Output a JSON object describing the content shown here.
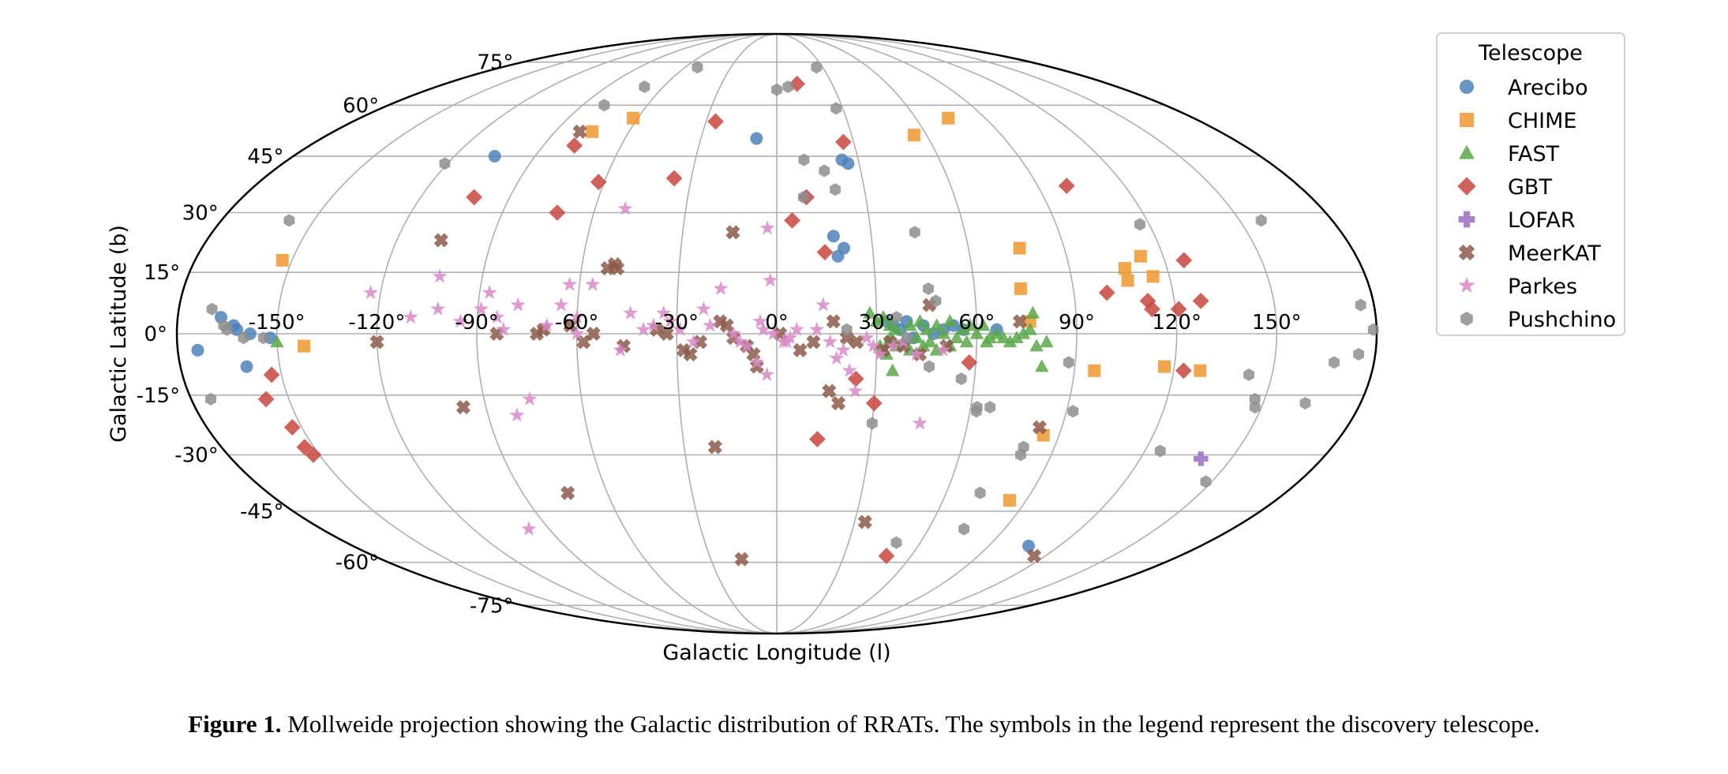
{
  "chart_data": {
    "type": "scatter",
    "projection": "mollweide",
    "xlabel": "Galactic Longitude (l)",
    "ylabel": "Galactic Latitude (b)",
    "xlim": [
      -180,
      180
    ],
    "ylim": [
      -90,
      90
    ],
    "grid": true,
    "x_ticks": [
      -150,
      -120,
      -90,
      -60,
      -30,
      0,
      30,
      60,
      90,
      120,
      150
    ],
    "x_tick_labels": [
      "-150°",
      "-120°",
      "-90°",
      "-60°",
      "-30°",
      "0°",
      "30°",
      "60°",
      "90°",
      "120°",
      "150°"
    ],
    "y_ticks": [
      -75,
      -60,
      -45,
      -30,
      -15,
      0,
      15,
      30,
      45,
      60,
      75
    ],
    "y_tick_labels": [
      "-75°",
      "-60°",
      "-45°",
      "-30°",
      "-15°",
      "0°",
      "15°",
      "30°",
      "45°",
      "60°",
      "75°"
    ],
    "legend": {
      "title": "Telescope",
      "position": "outside-right"
    },
    "series": [
      {
        "name": "Arecibo",
        "marker": "circle",
        "color": "#4e82b8",
        "points": [
          [
            -174,
            -4
          ],
          [
            -167,
            4
          ],
          [
            -163,
            2
          ],
          [
            -162,
            1
          ],
          [
            -158,
            0
          ],
          [
            -152,
            -1
          ],
          [
            -160,
            -8
          ],
          [
            -105,
            45
          ],
          [
            -8,
            50
          ],
          [
            18,
            24
          ],
          [
            21,
            21
          ],
          [
            19,
            19
          ],
          [
            24,
            44
          ],
          [
            26,
            43
          ],
          [
            33,
            3
          ],
          [
            35,
            2
          ],
          [
            37,
            1
          ],
          [
            39,
            3
          ],
          [
            41,
            -1
          ],
          [
            44,
            2
          ],
          [
            47,
            0
          ],
          [
            50,
            1
          ],
          [
            53,
            2
          ],
          [
            56,
            1
          ],
          [
            66,
            1
          ],
          [
            107,
            -55
          ]
        ]
      },
      {
        "name": "CHIME",
        "marker": "square",
        "color": "#f0962e",
        "points": [
          [
            -153,
            18
          ],
          [
            -142,
            -3
          ],
          [
            -75,
            52
          ],
          [
            -62,
            56
          ],
          [
            55,
            51
          ],
          [
            74,
            56
          ],
          [
            74,
            11
          ],
          [
            76,
            21
          ],
          [
            76,
            3
          ],
          [
            85,
            -25
          ],
          [
            84,
            -42
          ],
          [
            96,
            -9
          ],
          [
            107,
            16
          ],
          [
            107,
            13
          ],
          [
            113,
            19
          ],
          [
            115,
            14
          ],
          [
            117,
            -8
          ],
          [
            128,
            -9
          ]
        ]
      },
      {
        "name": "FAST",
        "marker": "triangle",
        "color": "#5aa84a",
        "points": [
          [
            -150,
            -2
          ],
          [
            28,
            5
          ],
          [
            30,
            3
          ],
          [
            31,
            -3
          ],
          [
            32,
            4
          ],
          [
            34,
            2
          ],
          [
            34,
            -1
          ],
          [
            35,
            -9
          ],
          [
            36,
            1
          ],
          [
            38,
            -2
          ],
          [
            40,
            2
          ],
          [
            42,
            -1
          ],
          [
            43,
            3
          ],
          [
            45,
            1
          ],
          [
            46,
            -2
          ],
          [
            48,
            2
          ],
          [
            50,
            0
          ],
          [
            52,
            3
          ],
          [
            54,
            -1
          ],
          [
            56,
            1
          ],
          [
            58,
            2
          ],
          [
            60,
            0
          ],
          [
            62,
            2
          ],
          [
            64,
            -1
          ],
          [
            66,
            0
          ],
          [
            68,
            -1
          ],
          [
            70,
            -2
          ],
          [
            72,
            -1
          ],
          [
            74,
            0
          ],
          [
            76,
            1
          ],
          [
            78,
            -3
          ],
          [
            80,
            -8
          ],
          [
            77,
            5
          ],
          [
            81,
            -2
          ],
          [
            33,
            -5
          ],
          [
            36,
            -3
          ],
          [
            40,
            -4
          ],
          [
            44,
            -3
          ],
          [
            48,
            -4
          ],
          [
            52,
            -3
          ],
          [
            57,
            -2
          ],
          [
            63,
            -2
          ]
        ]
      },
      {
        "name": "GBT",
        "marker": "diamond",
        "color": "#c8463e",
        "points": [
          [
            -153,
            -10
          ],
          [
            -157,
            -16
          ],
          [
            -153,
            -23
          ],
          [
            -152,
            -30
          ],
          [
            -153,
            -28
          ],
          [
            -102,
            34
          ],
          [
            -78,
            48
          ],
          [
            -72,
            30
          ],
          [
            -62,
            38
          ],
          [
            -36,
            39
          ],
          [
            -26,
            55
          ],
          [
            11,
            67
          ],
          [
            10,
            34
          ],
          [
            5,
            28
          ],
          [
            15,
            20
          ],
          [
            26,
            49
          ],
          [
            24,
            -11
          ],
          [
            30,
            -17
          ],
          [
            13,
            -26
          ],
          [
            49,
            -58
          ],
          [
            58,
            -7
          ],
          [
            100,
            37
          ],
          [
            100,
            10
          ],
          [
            112,
            8
          ],
          [
            113,
            6
          ],
          [
            121,
            6
          ],
          [
            123,
            -9
          ],
          [
            126,
            18
          ],
          [
            128,
            8
          ]
        ]
      },
      {
        "name": "LOFAR",
        "marker": "plus",
        "color": "#9b6cc2",
        "points": [
          [
            140,
            -31
          ]
        ]
      },
      {
        "name": "MeerKAT",
        "marker": "x",
        "color": "#8b5a4a",
        "points": [
          [
            -120,
            -2
          ],
          [
            -106,
            23
          ],
          [
            -97,
            -18
          ],
          [
            -84,
            0
          ],
          [
            -72,
            0
          ],
          [
            -70,
            1
          ],
          [
            -62,
            2
          ],
          [
            -58,
            -2
          ],
          [
            -55,
            0
          ],
          [
            -52,
            16
          ],
          [
            -49,
            16
          ],
          [
            -46,
            -3
          ],
          [
            -36,
            1
          ],
          [
            -33,
            0
          ],
          [
            -28,
            -4
          ],
          [
            -26,
            -5
          ],
          [
            -20,
            -28
          ],
          [
            -17,
            3
          ],
          [
            -15,
            2
          ],
          [
            -14,
            25
          ],
          [
            -13,
            -1
          ],
          [
            -7,
            -5
          ],
          [
            -6,
            -8
          ],
          [
            1,
            0
          ],
          [
            7,
            -4
          ],
          [
            11,
            -2
          ],
          [
            16,
            -14
          ],
          [
            17,
            3
          ],
          [
            19,
            -17
          ],
          [
            21,
            -1
          ],
          [
            24,
            -2
          ],
          [
            32,
            -4
          ],
          [
            34,
            -2
          ],
          [
            38,
            -3
          ],
          [
            43,
            -5
          ],
          [
            46,
            7
          ],
          [
            51,
            -3
          ],
          [
            73,
            3
          ],
          [
            83,
            -23
          ],
          [
            115,
            -58
          ],
          [
            -23,
            -2
          ],
          [
            -16,
            -59
          ],
          [
            -74,
            -40
          ],
          [
            34,
            -48
          ],
          [
            -80,
            52
          ],
          [
            -9,
            -3
          ],
          [
            -50,
            17
          ]
        ]
      },
      {
        "name": "Parkes",
        "marker": "star",
        "color": "#d98ac8",
        "points": [
          [
            -123,
            10
          ],
          [
            -110,
            4
          ],
          [
            -102,
            6
          ],
          [
            -103,
            14
          ],
          [
            -95,
            3
          ],
          [
            -89,
            6
          ],
          [
            -87,
            10
          ],
          [
            -84,
            4
          ],
          [
            -81,
            -20
          ],
          [
            -78,
            7
          ],
          [
            -76,
            -16
          ],
          [
            -69,
            2
          ],
          [
            -65,
            7
          ],
          [
            -63,
            12
          ],
          [
            -60,
            4
          ],
          [
            -56,
            12
          ],
          [
            -50,
            31
          ],
          [
            -47,
            -4
          ],
          [
            -44,
            5
          ],
          [
            -40,
            1
          ],
          [
            -37,
            2
          ],
          [
            -32,
            3
          ],
          [
            -29,
            1
          ],
          [
            -25,
            -2
          ],
          [
            -22,
            6
          ],
          [
            -20,
            2
          ],
          [
            -17,
            11
          ],
          [
            -13,
            0
          ],
          [
            -11,
            -2
          ],
          [
            -9,
            -3
          ],
          [
            -5,
            3
          ],
          [
            -4,
            1
          ],
          [
            -1,
            0
          ],
          [
            2,
            -2
          ],
          [
            4,
            -1
          ],
          [
            6,
            1
          ],
          [
            -3,
            26
          ],
          [
            -2,
            13
          ],
          [
            -6,
            -7
          ],
          [
            -3,
            -10
          ],
          [
            3,
            -2
          ],
          [
            12,
            1
          ],
          [
            14,
            7
          ],
          [
            16,
            -2
          ],
          [
            18,
            -6
          ],
          [
            20,
            -4
          ],
          [
            22,
            -9
          ],
          [
            24,
            -14
          ],
          [
            27,
            -1
          ],
          [
            29,
            -3
          ],
          [
            31,
            -5
          ],
          [
            35,
            -3
          ],
          [
            38,
            -2
          ],
          [
            42,
            -5
          ],
          [
            45,
            -22
          ],
          [
            50,
            -4
          ],
          [
            -98,
            -50
          ],
          [
            -82,
            1
          ],
          [
            -60,
            0
          ],
          [
            -34,
            5
          ]
        ]
      },
      {
        "name": "Pushchino",
        "marker": "hexagon",
        "color": "#8e8e8e",
        "points": [
          [
            -170,
            6
          ],
          [
            -166,
            2
          ],
          [
            -165,
            1
          ],
          [
            -160,
            -1
          ],
          [
            -154,
            -1
          ],
          [
            -174,
            -16
          ],
          [
            -158,
            28
          ],
          [
            -121,
            43
          ],
          [
            -80,
            60
          ],
          [
            -70,
            66
          ],
          [
            -52,
            73
          ],
          [
            0,
            65
          ],
          [
            6,
            66
          ],
          [
            10,
            44
          ],
          [
            9,
            34
          ],
          [
            17,
            41
          ],
          [
            26,
            73
          ],
          [
            27,
            59
          ],
          [
            20,
            36
          ],
          [
            46,
            11
          ],
          [
            44,
            25
          ],
          [
            48,
            8
          ],
          [
            46,
            -8
          ],
          [
            56,
            -11
          ],
          [
            62,
            -19
          ],
          [
            62,
            -18
          ],
          [
            30,
            -22
          ],
          [
            66,
            -18
          ],
          [
            72,
            -40
          ],
          [
            74,
            -50
          ],
          [
            80,
            -28
          ],
          [
            80,
            -30
          ],
          [
            88,
            -7
          ],
          [
            92,
            -19
          ],
          [
            117,
            27
          ],
          [
            125,
            -29
          ],
          [
            143,
            -10
          ],
          [
            147,
            -16
          ],
          [
            148,
            -18
          ],
          [
            148,
            -37
          ],
          [
            157,
            28
          ],
          [
            163,
            -17
          ],
          [
            168,
            -7
          ],
          [
            175,
            -5
          ],
          [
            179,
            1
          ],
          [
            176,
            7
          ],
          [
            50,
            -54
          ],
          [
            36,
            4
          ],
          [
            39,
            -1
          ],
          [
            21,
            1
          ]
        ]
      }
    ]
  },
  "caption": {
    "label": "Figure 1.",
    "text": " Mollweide projection showing the Galactic distribution of RRATs. The symbols in the legend represent the discovery telescope."
  }
}
